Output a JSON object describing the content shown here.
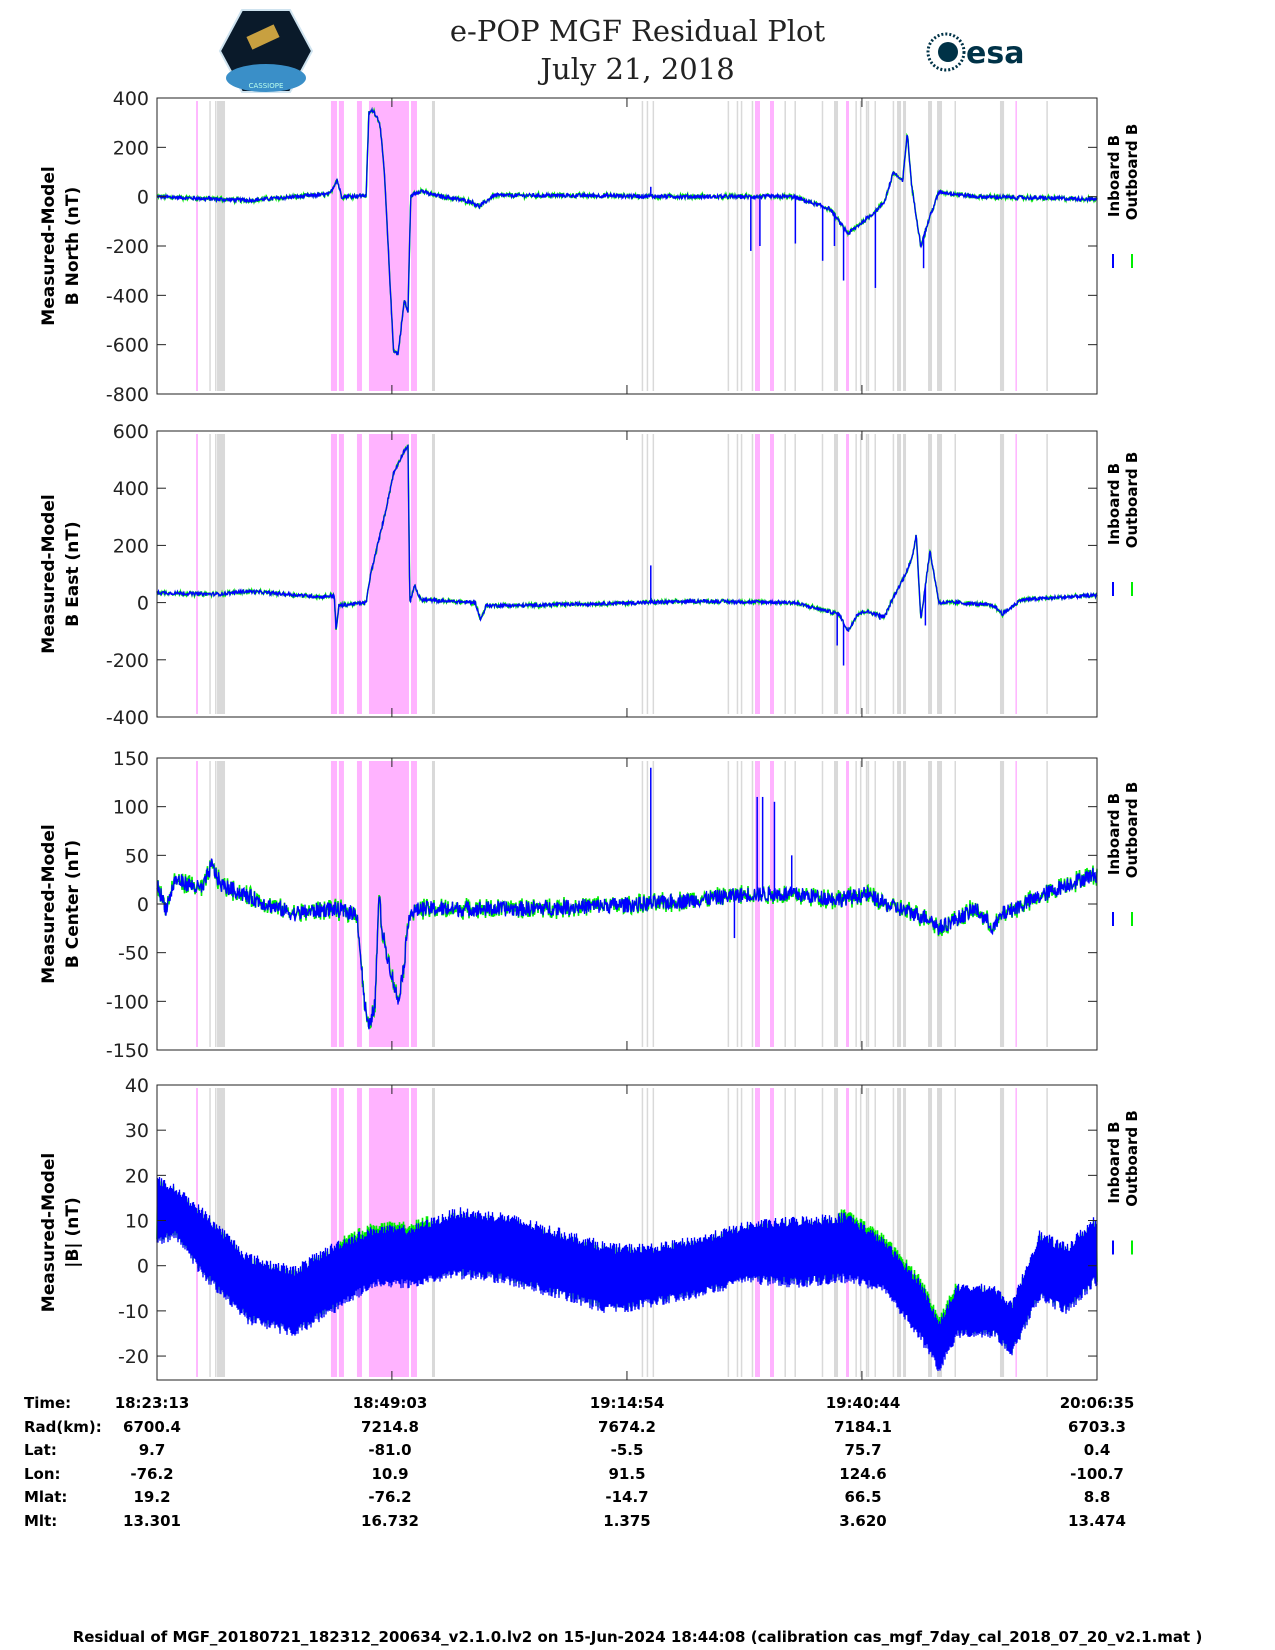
{
  "header": {
    "title_line1": "e-POP MGF Residual Plot",
    "title_line2": "July 21, 2018",
    "logo_left": "CASSIOPE",
    "logo_right": "esa"
  },
  "legend": {
    "inboard": "Inboard B",
    "outboard": "Outboard B"
  },
  "colors": {
    "inboard": "#0000ff",
    "outboard": "#00ee00",
    "pink_band": "#ffb3ff",
    "grey_band": "#d9d9d9"
  },
  "chart_data": [
    {
      "type": "line",
      "ylabel": [
        "Measured-Model",
        "B North (nT)"
      ],
      "ylim": [
        -800,
        400
      ],
      "yticks": [
        400,
        200,
        0,
        -200,
        -400,
        -600,
        -800
      ],
      "noise": 8,
      "series": [
        {
          "name": "Inboard B",
          "x_min": [
            0,
            10,
            19,
            19.8,
            20.3,
            23,
            23.3,
            23.8,
            24.5,
            25,
            26,
            26.5,
            27.2,
            27.6,
            27.9,
            28.2,
            29,
            30,
            34.5,
            35.5,
            37,
            45,
            60,
            64,
            70,
            74,
            76,
            77,
            79,
            80,
            81,
            82,
            82.5,
            83,
            84,
            85,
            86,
            90,
            103
          ],
          "y": [
            0,
            -15,
            10,
            70,
            0,
            5,
            340,
            350,
            300,
            100,
            -620,
            -640,
            -420,
            -470,
            0,
            10,
            25,
            10,
            -20,
            -40,
            5,
            5,
            0,
            0,
            0,
            -50,
            -150,
            -120,
            -60,
            -20,
            100,
            60,
            260,
            40,
            -200,
            -80,
            20,
            0,
            -10
          ]
        }
      ],
      "spikes": [
        [
          65.3,
          -220
        ],
        [
          66.3,
          -200
        ],
        [
          70.2,
          -190
        ],
        [
          73.2,
          -260
        ],
        [
          74.5,
          -200
        ],
        [
          75.5,
          -340
        ],
        [
          79,
          -370
        ],
        [
          84.3,
          -290
        ],
        [
          54.3,
          40
        ]
      ]
    },
    {
      "type": "line",
      "ylabel": [
        "Measured-Model",
        "B East (nT)"
      ],
      "ylim": [
        -400,
        600
      ],
      "yticks": [
        600,
        400,
        200,
        0,
        -200,
        -400
      ],
      "noise": 6,
      "series": [
        {
          "name": "Inboard B",
          "x_min": [
            0,
            5,
            7,
            10,
            18,
            19.5,
            19.7,
            20,
            23,
            23.5,
            25,
            26,
            27,
            27.6,
            27.8,
            28.3,
            29,
            35,
            35.6,
            36.2,
            40,
            60,
            70,
            75,
            76,
            77,
            78,
            80,
            81,
            82,
            83,
            83.5,
            84,
            85,
            86,
            88,
            92,
            93,
            95,
            103
          ],
          "y": [
            35,
            30,
            30,
            40,
            20,
            25,
            -100,
            -10,
            0,
            100,
            300,
            450,
            520,
            550,
            0,
            60,
            10,
            0,
            -60,
            -10,
            -10,
            5,
            0,
            -40,
            -100,
            -40,
            -30,
            -50,
            20,
            80,
            150,
            240,
            -60,
            180,
            0,
            0,
            -10,
            -40,
            10,
            25
          ]
        }
      ],
      "spikes": [
        [
          54.3,
          130
        ],
        [
          75.5,
          -220
        ],
        [
          74.8,
          -150
        ],
        [
          79.5,
          -60
        ],
        [
          84.5,
          -80
        ]
      ]
    },
    {
      "type": "line",
      "ylabel": [
        "Measured-Model",
        "B Center (nT)"
      ],
      "ylim": [
        -150,
        150
      ],
      "yticks": [
        150,
        100,
        50,
        0,
        -50,
        -100,
        -150
      ],
      "noise": 8,
      "series": [
        {
          "name": "Inboard B",
          "x_min": [
            0,
            1,
            2,
            5,
            6,
            7,
            12,
            15,
            19,
            22,
            22.8,
            23.3,
            24,
            24.4,
            24.8,
            25.5,
            26.5,
            27.2,
            27.7,
            29,
            35,
            40,
            54,
            60,
            65,
            70,
            75,
            78,
            80,
            85,
            86,
            90,
            92,
            93,
            100,
            103
          ],
          "y": [
            20,
            -5,
            25,
            15,
            40,
            20,
            0,
            -10,
            -5,
            -10,
            -100,
            -130,
            -100,
            10,
            -30,
            -60,
            -100,
            -60,
            -10,
            -5,
            -5,
            -5,
            0,
            5,
            10,
            10,
            5,
            10,
            0,
            -15,
            -25,
            -5,
            -25,
            -10,
            20,
            30
          ]
        }
      ],
      "spikes": [
        [
          54.3,
          140
        ],
        [
          66,
          110
        ],
        [
          66.6,
          110
        ],
        [
          67.9,
          105
        ],
        [
          69.8,
          50
        ],
        [
          63.5,
          -35
        ],
        [
          76.5,
          10
        ]
      ]
    },
    {
      "type": "area",
      "ylabel": [
        "Measured-Model",
        "|B| (nT)"
      ],
      "ylim": [
        -25.3,
        40
      ],
      "yticks": [
        40,
        30,
        20,
        10,
        0,
        -10,
        -20
      ],
      "noise": 0,
      "series": [
        {
          "name": "Inboard B envelope",
          "x_min": [
            0,
            2,
            5,
            10,
            15,
            20,
            24,
            28,
            33,
            38,
            45,
            50,
            55,
            60,
            65,
            70,
            76,
            80,
            84,
            86,
            88,
            92,
            94,
            97,
            100,
            103
          ],
          "center": [
            12,
            12,
            5,
            -5,
            -8,
            -2,
            2,
            2,
            5,
            4,
            0,
            -3,
            -2,
            0,
            3,
            3,
            4,
            0,
            -10,
            -18,
            -10,
            -10,
            -14,
            0,
            -3,
            3
          ],
          "amplitude": [
            8,
            6,
            8,
            8,
            8,
            8,
            7,
            7,
            8,
            8,
            8,
            8,
            7,
            7,
            7,
            8,
            8,
            6,
            7,
            6,
            6,
            6,
            6,
            8,
            8,
            8
          ]
        }
      ],
      "spikes": []
    }
  ],
  "x_axis": {
    "range_min": [
      0,
      103.37
    ],
    "tick_min": [
      0,
      25.83,
      51.68,
      77.52,
      103.37
    ]
  },
  "bands": {
    "pink": [
      [
        4.3,
        4.5
      ],
      [
        19.13,
        19.8
      ],
      [
        20.0,
        20.56
      ],
      [
        21.99,
        22.54
      ],
      [
        23.31,
        27.71
      ],
      [
        27.93,
        28.59
      ],
      [
        65.76,
        66.31
      ],
      [
        67.41,
        67.85
      ],
      [
        75.77,
        76.1
      ],
      [
        94.4,
        94.55
      ]
    ],
    "grey": [
      [
        5.75,
        5.9
      ],
      [
        6.38,
        6.5
      ],
      [
        6.6,
        7.48
      ],
      [
        30.24,
        30.57
      ],
      [
        53.3,
        53.45
      ],
      [
        53.85,
        54.0
      ],
      [
        54.5,
        54.65
      ],
      [
        62.75,
        62.9
      ],
      [
        63.75,
        63.9
      ],
      [
        64.2,
        64.35
      ],
      [
        65.4,
        65.55
      ],
      [
        69.0,
        69.15
      ],
      [
        70.1,
        70.25
      ],
      [
        73.1,
        73.25
      ],
      [
        74.45,
        74.89
      ],
      [
        76.8,
        76.95
      ],
      [
        77.3,
        77.45
      ],
      [
        77.95,
        78.1
      ],
      [
        78.15,
        78.3
      ],
      [
        78.9,
        79.05
      ],
      [
        80.9,
        81.05
      ],
      [
        81.38,
        81.82
      ],
      [
        82.04,
        82.37
      ],
      [
        84.79,
        85.23
      ],
      [
        85.78,
        86.33
      ],
      [
        87.7,
        87.85
      ],
      [
        92.7,
        93.15
      ],
      [
        97.8,
        97.95
      ]
    ]
  },
  "table": {
    "row_labels": [
      "Time:",
      "Rad(km):",
      "Lat:",
      "Lon:",
      "Mlat:",
      "Mlt:"
    ],
    "columns": [
      [
        "18:23:13",
        "6700.4",
        "9.7",
        "-76.2",
        "19.2",
        "13.301"
      ],
      [
        "18:49:03",
        "7214.8",
        "-81.0",
        "10.9",
        "-76.2",
        "16.732"
      ],
      [
        "19:14:54",
        "7674.2",
        "-5.5",
        "91.5",
        "-14.7",
        "1.375"
      ],
      [
        "19:40:44",
        "7184.1",
        "75.7",
        "124.6",
        "66.5",
        "3.620"
      ],
      [
        "20:06:35",
        "6703.3",
        "0.4",
        "-100.7",
        "8.8",
        "13.474"
      ]
    ]
  },
  "footer": "Residual of MGF_20180721_182312_200634_v2.1.0.lv2 on 15-Jun-2024 18:44:08 (calibration cas_mgf_7day_cal_2018_07_20_v2.1.mat )"
}
